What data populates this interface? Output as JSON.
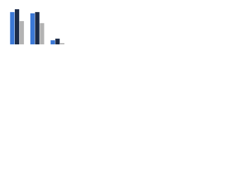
{
  "chart_data": {
    "type": "bar",
    "categories": [
      null,
      null,
      null
    ],
    "series": [
      {
        "color": "#3b78d6",
        "values": [
          79,
          76,
          10
        ]
      },
      {
        "color": "#1c2b48",
        "values": [
          86,
          79,
          14
        ]
      },
      {
        "color": "#b3b3b3",
        "values": [
          57,
          52,
          3
        ]
      }
    ],
    "ylim": [
      0,
      100
    ]
  }
}
